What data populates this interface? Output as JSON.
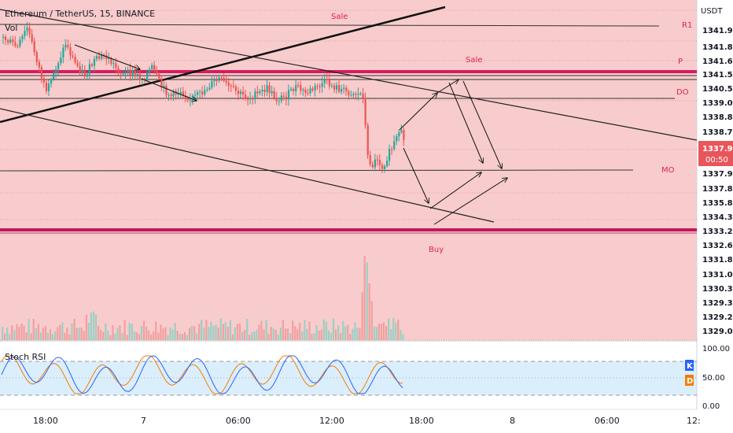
{
  "header": {
    "title": "Ethereum / TetherUS, 15, BINANCE",
    "volume_label": "Vol",
    "currency": "USDT"
  },
  "stoch": {
    "label": "Stoch RSI",
    "k_badge": "K",
    "d_badge": "D",
    "ticks": [
      "100.00",
      "50.00",
      "0.00"
    ],
    "k_color": "#2962ff",
    "d_color": "#f57c00"
  },
  "chart_data": {
    "type": "candlestick",
    "symbol": "ETHUSDT",
    "interval": "15",
    "exchange": "BINANCE",
    "price_ticks": [
      "1341.99",
      "1341.83",
      "1341.60",
      "1341.55",
      "1340.57",
      "1339.09",
      "1338.87",
      "1338.71",
      "1337.90",
      "1337.82",
      "1335.87",
      "1334.30",
      "1333.25",
      "1332.68",
      "1331.81",
      "1331.03",
      "1330.30",
      "1329.39",
      "1329.23",
      "1329.08"
    ],
    "last_price": "1337.97",
    "countdown": "00:50",
    "x_ticks": [
      "18:00",
      "7",
      "06:00",
      "12:00",
      "18:00",
      "8",
      "06:00",
      "12:"
    ],
    "level_labels": [
      {
        "text": "Sale",
        "color": "#e0234e"
      },
      {
        "text": "R1",
        "color": "#e0234e"
      },
      {
        "text": "Sale",
        "color": "#e0234e"
      },
      {
        "text": "P",
        "color": "#e0234e"
      },
      {
        "text": "DO",
        "color": "#e0234e"
      },
      {
        "text": "MO",
        "color": "#e0234e"
      },
      {
        "text": "Buy",
        "color": "#e0234e"
      }
    ],
    "up_color": "#26a69a",
    "down_color": "#ef5350",
    "zone_color": "#f8cccc"
  }
}
